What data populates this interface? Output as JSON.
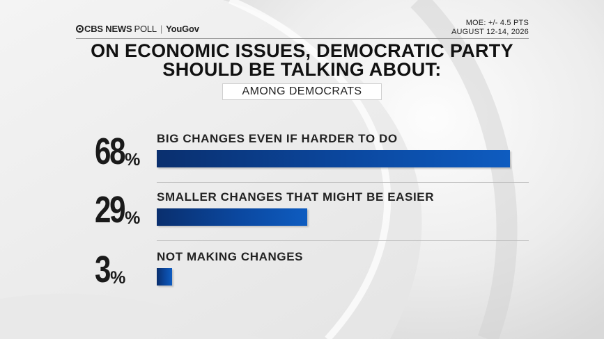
{
  "header": {
    "brand": "CBS NEWS",
    "poll_label": "POLL",
    "partner": "YouGov",
    "moe": "MOE: +/- 4.5 PTS",
    "dates": "AUGUST 12-14, 2026"
  },
  "title_line1": "ON ECONOMIC ISSUES, DEMOCRATIC PARTY",
  "title_line2": "SHOULD BE TALKING ABOUT:",
  "subgroup": "AMONG DEMOCRATS",
  "colors": {
    "bar": "#0b4aa6",
    "bar_dark": "#0a2f6e",
    "text": "#1d1d1d"
  },
  "chart_data": {
    "type": "bar",
    "orientation": "horizontal",
    "title": "ON ECONOMIC ISSUES, DEMOCRATIC PARTY SHOULD BE TALKING ABOUT:",
    "subtitle": "AMONG DEMOCRATS",
    "categories": [
      "BIG CHANGES EVEN IF HARDER TO DO",
      "SMALLER CHANGES THAT MIGHT BE EASIER",
      "NOT MAKING CHANGES"
    ],
    "values": [
      68,
      29,
      3
    ],
    "value_labels": [
      "68",
      "29",
      "3"
    ],
    "unit": "%",
    "xlim": [
      0,
      68
    ],
    "grid": false
  }
}
